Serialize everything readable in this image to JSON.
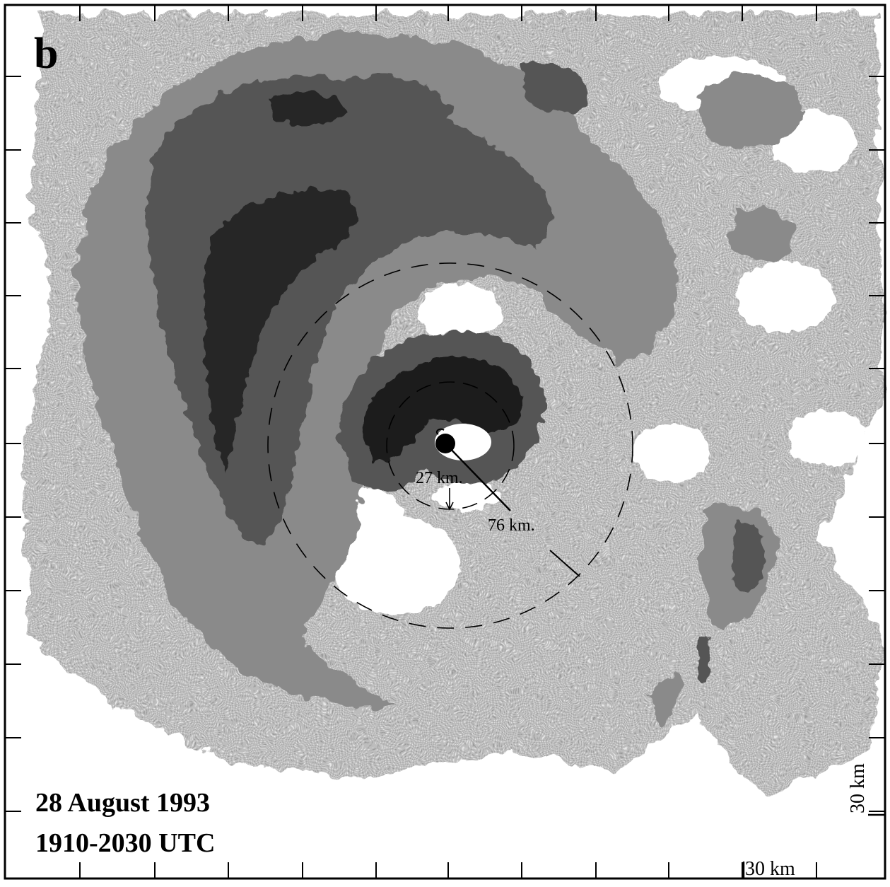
{
  "panel": {
    "letter": "b"
  },
  "caption": {
    "date": "28 August 1993",
    "time": "1910-2030 UTC"
  },
  "annotations": {
    "inner_radius": "27 km.",
    "outer_radius": "76 km."
  },
  "scale": {
    "horizontal": "30 km",
    "vertical": "30 km"
  },
  "colors": {
    "background": "#ffffff",
    "light_echo": "#c4c4c4",
    "moderate_echo": "#8c8c8c",
    "strong_echo": "#545454",
    "intense_echo": "#262626",
    "ink": "#000000"
  }
}
